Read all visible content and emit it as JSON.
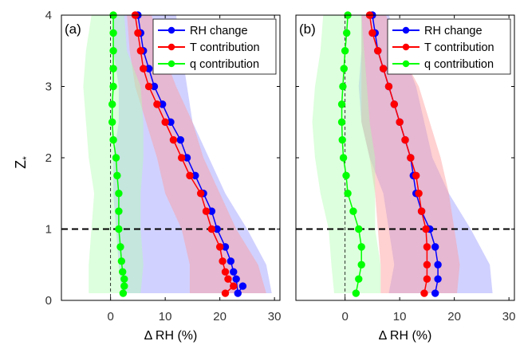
{
  "chart_data": [
    {
      "type": "line",
      "panel_label": "(a)",
      "xlabel": "Δ RH (%)",
      "ylabel": "Z*",
      "xlim": [
        -9,
        31
      ],
      "ylim": [
        0,
        4
      ],
      "xticks": [
        0,
        10,
        20,
        30
      ],
      "yticks": [
        0,
        1,
        2,
        3,
        4
      ],
      "grid": false,
      "legend": "top-right",
      "reference_lines": {
        "vertical_x": 0,
        "horizontal_y": 1
      },
      "series": [
        {
          "name": "RH change",
          "color": "#0000ff",
          "band_color": "#9999ff",
          "points": [
            [
              24.2,
              0.2
            ],
            [
              23.3,
              0.1
            ],
            [
              23.0,
              0.3
            ],
            [
              22.5,
              0.4
            ],
            [
              22.0,
              0.55
            ],
            [
              21.0,
              0.75
            ],
            [
              19.5,
              1.0
            ],
            [
              18.5,
              1.25
            ],
            [
              17.0,
              1.5
            ],
            [
              15.5,
              1.75
            ],
            [
              14.0,
              2.0
            ],
            [
              12.8,
              2.25
            ],
            [
              11.0,
              2.5
            ],
            [
              9.5,
              2.75
            ],
            [
              8.0,
              3.0
            ],
            [
              7.0,
              3.25
            ],
            [
              6.0,
              3.5
            ],
            [
              5.5,
              3.75
            ],
            [
              5.0,
              4.0
            ]
          ],
          "band": [
            [
              2.0,
              29.5,
              0.1
            ],
            [
              1.5,
              28.5,
              0.5
            ],
            [
              1.0,
              25.0,
              1.0
            ],
            [
              0.5,
              21.0,
              1.5
            ],
            [
              0.5,
              18.0,
              2.0
            ],
            [
              1.5,
              15.0,
              2.5
            ],
            [
              1.5,
              14.0,
              3.0
            ],
            [
              0.5,
              13.0,
              3.5
            ],
            [
              0.5,
              12.0,
              4.0
            ]
          ]
        },
        {
          "name": "T contribution",
          "color": "#ff0000",
          "band_color": "#ff9999",
          "points": [
            [
              21.0,
              0.1
            ],
            [
              22.5,
              0.2
            ],
            [
              21.5,
              0.3
            ],
            [
              21.0,
              0.4
            ],
            [
              20.5,
              0.55
            ],
            [
              20.0,
              0.75
            ],
            [
              18.5,
              1.0
            ],
            [
              17.5,
              1.25
            ],
            [
              16.5,
              1.5
            ],
            [
              14.5,
              1.75
            ],
            [
              13.0,
              2.0
            ],
            [
              11.5,
              2.25
            ],
            [
              10.0,
              2.5
            ],
            [
              8.5,
              2.75
            ],
            [
              7.0,
              3.0
            ],
            [
              6.0,
              3.25
            ],
            [
              5.5,
              3.5
            ],
            [
              5.0,
              3.75
            ],
            [
              4.5,
              4.0
            ]
          ],
          "band": [
            [
              14.5,
              28.5,
              0.1
            ],
            [
              14.5,
              27.0,
              0.5
            ],
            [
              13.0,
              23.0,
              1.0
            ],
            [
              10.0,
              20.0,
              1.5
            ],
            [
              8.5,
              17.0,
              2.0
            ],
            [
              6.5,
              15.0,
              2.5
            ],
            [
              4.5,
              12.0,
              3.0
            ],
            [
              3.5,
              9.5,
              3.5
            ],
            [
              3.0,
              7.5,
              4.0
            ]
          ]
        },
        {
          "name": "q contribution",
          "color": "#00ff00",
          "band_color": "#b3ffb3",
          "points": [
            [
              2.3,
              0.1
            ],
            [
              2.5,
              0.2
            ],
            [
              2.5,
              0.3
            ],
            [
              2.2,
              0.4
            ],
            [
              2.0,
              0.55
            ],
            [
              1.8,
              0.75
            ],
            [
              1.5,
              1.0
            ],
            [
              1.5,
              1.25
            ],
            [
              1.5,
              1.5
            ],
            [
              1.2,
              1.75
            ],
            [
              1.0,
              2.0
            ],
            [
              0.5,
              2.25
            ],
            [
              0.3,
              2.5
            ],
            [
              0.3,
              2.75
            ],
            [
              0.5,
              3.0
            ],
            [
              0.5,
              3.25
            ],
            [
              0.5,
              3.5
            ],
            [
              0.5,
              3.75
            ],
            [
              0.5,
              4.0
            ]
          ],
          "band": [
            [
              -4.0,
              5.5,
              0.1
            ],
            [
              -4.0,
              6.0,
              0.5
            ],
            [
              -3.5,
              5.5,
              1.0
            ],
            [
              -3.0,
              5.5,
              1.5
            ],
            [
              -4.0,
              6.0,
              2.0
            ],
            [
              -4.5,
              6.0,
              2.5
            ],
            [
              -5.0,
              5.5,
              3.0
            ],
            [
              -4.5,
              3.0,
              3.5
            ],
            [
              -3.5,
              2.5,
              4.0
            ]
          ]
        }
      ]
    },
    {
      "type": "line",
      "panel_label": "(b)",
      "xlabel": "Δ RH (%)",
      "ylabel": "",
      "xlim": [
        -9,
        31
      ],
      "ylim": [
        0,
        4
      ],
      "xticks": [
        0,
        10,
        20,
        30
      ],
      "yticks": [
        0,
        1,
        2,
        3,
        4
      ],
      "grid": false,
      "legend": "top-right",
      "reference_lines": {
        "vertical_x": 0,
        "horizontal_y": 1
      },
      "series": [
        {
          "name": "RH change",
          "color": "#0000ff",
          "band_color": "#9999ff",
          "points": [
            [
              16.5,
              0.1
            ],
            [
              17.0,
              0.3
            ],
            [
              17.0,
              0.5
            ],
            [
              16.5,
              0.75
            ],
            [
              15.5,
              1.0
            ],
            [
              14.0,
              1.25
            ],
            [
              13.0,
              1.5
            ],
            [
              12.5,
              1.75
            ],
            [
              12.0,
              2.0
            ],
            [
              11.0,
              2.25
            ],
            [
              10.0,
              2.5
            ],
            [
              9.0,
              2.75
            ],
            [
              8.0,
              3.0
            ],
            [
              7.0,
              3.25
            ],
            [
              6.0,
              3.5
            ],
            [
              5.5,
              3.75
            ],
            [
              5.0,
              4.0
            ]
          ],
          "band": [
            [
              8.0,
              27.0,
              0.1
            ],
            [
              9.0,
              26.5,
              0.5
            ],
            [
              8.0,
              23.0,
              1.0
            ],
            [
              7.0,
              19.0,
              1.5
            ],
            [
              4.5,
              16.0,
              2.0
            ],
            [
              3.0,
              14.5,
              2.5
            ],
            [
              2.5,
              13.0,
              3.0
            ],
            [
              3.0,
              10.5,
              3.5
            ],
            [
              3.0,
              8.0,
              4.0
            ]
          ]
        },
        {
          "name": "T contribution",
          "color": "#ff0000",
          "band_color": "#ff9999",
          "points": [
            [
              14.5,
              0.1
            ],
            [
              15.0,
              0.3
            ],
            [
              15.0,
              0.5
            ],
            [
              15.0,
              0.75
            ],
            [
              14.8,
              1.0
            ],
            [
              14.0,
              1.25
            ],
            [
              13.5,
              1.5
            ],
            [
              13.0,
              1.75
            ],
            [
              12.0,
              2.0
            ],
            [
              11.0,
              2.25
            ],
            [
              10.0,
              2.5
            ],
            [
              9.0,
              2.75
            ],
            [
              8.0,
              3.0
            ],
            [
              7.0,
              3.25
            ],
            [
              6.0,
              3.5
            ],
            [
              5.0,
              3.75
            ],
            [
              4.5,
              4.0
            ]
          ],
          "band": [
            [
              6.5,
              20.5,
              0.1
            ],
            [
              6.5,
              21.0,
              0.5
            ],
            [
              6.0,
              20.0,
              1.0
            ],
            [
              5.5,
              19.0,
              1.5
            ],
            [
              4.5,
              17.5,
              2.0
            ],
            [
              3.0,
              15.5,
              2.5
            ],
            [
              3.0,
              13.5,
              3.0
            ],
            [
              3.0,
              10.0,
              3.5
            ],
            [
              3.0,
              7.5,
              4.0
            ]
          ]
        },
        {
          "name": "q contribution",
          "color": "#00ff00",
          "band_color": "#b3ffb3",
          "points": [
            [
              2.0,
              0.1
            ],
            [
              2.5,
              0.3
            ],
            [
              3.0,
              0.5
            ],
            [
              3.0,
              0.75
            ],
            [
              2.5,
              1.0
            ],
            [
              1.5,
              1.25
            ],
            [
              0.5,
              1.5
            ],
            [
              0.2,
              1.75
            ],
            [
              -0.3,
              2.0
            ],
            [
              -0.5,
              2.25
            ],
            [
              -0.6,
              2.5
            ],
            [
              -0.6,
              2.75
            ],
            [
              -0.4,
              3.0
            ],
            [
              -0.2,
              3.25
            ],
            [
              0.0,
              3.5
            ],
            [
              0.3,
              3.75
            ],
            [
              0.5,
              4.0
            ]
          ],
          "band": [
            [
              -2.0,
              6.5,
              0.1
            ],
            [
              -2.5,
              6.5,
              0.5
            ],
            [
              -3.0,
              5.5,
              1.0
            ],
            [
              -4.5,
              5.5,
              1.5
            ],
            [
              -5.5,
              5.5,
              2.0
            ],
            [
              -6.0,
              4.5,
              2.5
            ],
            [
              -5.5,
              4.0,
              3.0
            ],
            [
              -4.5,
              3.5,
              3.5
            ],
            [
              -4.0,
              3.0,
              4.0
            ]
          ]
        }
      ]
    }
  ]
}
